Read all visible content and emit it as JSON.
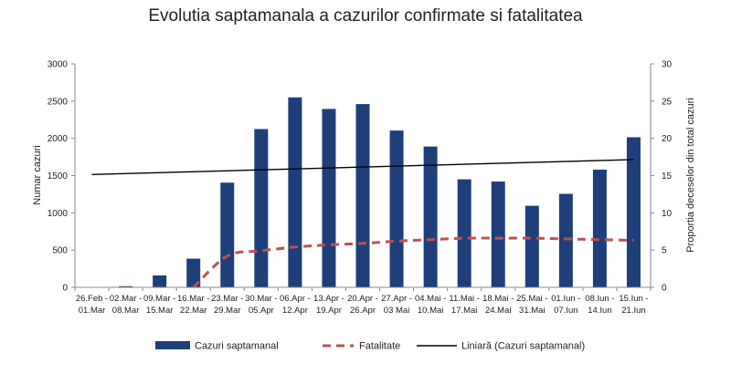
{
  "chart_data": {
    "type": "bar",
    "title": "Evolutia saptamanala a cazurilor confirmate si fatalitatea",
    "ylabel": "Numar cazuri",
    "y2label": "Proportia deceselor din total cazuri",
    "ylim": [
      0,
      3000
    ],
    "y2lim": [
      0,
      30
    ],
    "yticks": [
      "0",
      "500",
      "1000",
      "1500",
      "2000",
      "2500",
      "3000"
    ],
    "y2ticks": [
      "0",
      "5",
      "10",
      "15",
      "20",
      "25",
      "30"
    ],
    "categories": [
      [
        "26.Feb -",
        "01.Mar"
      ],
      [
        "02.Mar -",
        "08.Mar"
      ],
      [
        "09.Mar -",
        "15.Mar"
      ],
      [
        "16.Mar -",
        "22.Mar"
      ],
      [
        "23.Mar -",
        "29.Mar"
      ],
      [
        "30.Mar -",
        "05.Apr"
      ],
      [
        "06.Apr -",
        "12.Apr"
      ],
      [
        "13.Apr -",
        "19.Apr"
      ],
      [
        "20.Apr -",
        "26.Apr"
      ],
      [
        "27.Apr -",
        "03 Mai"
      ],
      [
        "04.Mai -",
        "10.Mai"
      ],
      [
        "11.Mai -",
        "17.Mai"
      ],
      [
        "18.Mai -",
        "24.Mai"
      ],
      [
        "25.Mai -",
        "31.Mai"
      ],
      [
        "01.Iun -",
        "07.Iun"
      ],
      [
        "08.Iun -",
        "14.Iun"
      ],
      [
        "15.Iun -",
        "21.Iun"
      ]
    ],
    "series": [
      {
        "name": "Cazuri saptamanal",
        "type": "bar",
        "axis": "left",
        "color": "#1f3f7a",
        "values": [
          3,
          15,
          160,
          385,
          1405,
          2125,
          2550,
          2395,
          2460,
          2105,
          1890,
          1450,
          1420,
          1095,
          1255,
          1580,
          2015
        ]
      },
      {
        "name": "Fatalitate",
        "type": "line",
        "style": "dashed",
        "axis": "right",
        "color": "#c0504d",
        "values": [
          null,
          null,
          null,
          0,
          4.2,
          4.9,
          5.4,
          5.7,
          5.9,
          6.2,
          6.4,
          6.6,
          6.6,
          6.6,
          6.5,
          6.4,
          6.3
        ]
      },
      {
        "name": "Liniară (Cazuri saptamanal)",
        "type": "trendline",
        "axis": "left",
        "color": "#000000",
        "start": 1515,
        "end": 1715
      }
    ],
    "legend": {
      "position": "bottom",
      "items": [
        "Cazuri saptamanal",
        "Fatalitate",
        "Liniară (Cazuri saptamanal)"
      ]
    },
    "grid": false
  }
}
